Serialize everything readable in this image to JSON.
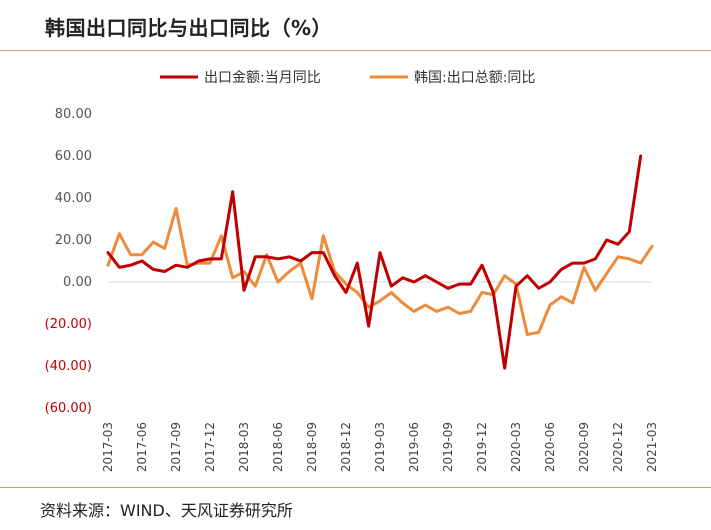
{
  "header": {
    "title": "韩国出口同比与出口同比（%）"
  },
  "footer": {
    "source": "资料来源：WIND、天风证券研究所"
  },
  "colors": {
    "series_red": "#c00000",
    "series_orange": "#ed8b3a",
    "negative_tick": "#c00000",
    "rule": "#d79b5a"
  },
  "chart_data": {
    "type": "line",
    "title": "韩国出口同比与出口同比（%）",
    "xlabel": "",
    "ylabel": "",
    "ylim": [
      -60,
      80
    ],
    "yticks": [
      80,
      60,
      40,
      20,
      0,
      -20,
      -40,
      -60
    ],
    "ytick_labels": [
      "80.00",
      "60.00",
      "40.00",
      "20.00",
      "0.00",
      "(20.00)",
      "(40.00)",
      "(60.00)"
    ],
    "x_tick_labels": [
      "2017-03",
      "2017-06",
      "2017-09",
      "2017-12",
      "2018-03",
      "2018-06",
      "2018-09",
      "2018-12",
      "2019-03",
      "2019-06",
      "2019-09",
      "2019-12",
      "2020-03",
      "2020-06",
      "2020-09",
      "2020-12",
      "2021-03"
    ],
    "x": [
      "2017-03",
      "2017-04",
      "2017-05",
      "2017-06",
      "2017-07",
      "2017-08",
      "2017-09",
      "2017-10",
      "2017-11",
      "2017-12",
      "2018-01",
      "2018-02",
      "2018-03",
      "2018-04",
      "2018-05",
      "2018-06",
      "2018-07",
      "2018-08",
      "2018-09",
      "2018-10",
      "2018-11",
      "2018-12",
      "2019-01",
      "2019-02",
      "2019-03",
      "2019-04",
      "2019-05",
      "2019-06",
      "2019-07",
      "2019-08",
      "2019-09",
      "2019-10",
      "2019-11",
      "2019-12",
      "2020-01",
      "2020-02",
      "2020-03",
      "2020-04",
      "2020-05",
      "2020-06",
      "2020-07",
      "2020-08",
      "2020-09",
      "2020-10",
      "2020-11",
      "2020-12",
      "2021-01",
      "2021-02",
      "2021-03"
    ],
    "legend_position": "top",
    "grid": false,
    "series": [
      {
        "name": "出口金额:当月同比",
        "color": "#c00000",
        "values": [
          14,
          7,
          8,
          10,
          6,
          5,
          8,
          7,
          10,
          11,
          11,
          43,
          -4,
          12,
          12,
          11,
          12,
          10,
          14,
          14,
          3,
          -5,
          9,
          -21,
          14,
          -2,
          2,
          0,
          3,
          0,
          -3,
          -1,
          -1,
          8,
          -5,
          -41,
          -2,
          3,
          -3,
          0,
          6,
          9,
          9,
          11,
          20,
          18,
          24,
          60,
          null
        ]
      },
      {
        "name": "韩国:出口总额:同比",
        "color": "#ed8b3a",
        "values": [
          8,
          23,
          13,
          13,
          19,
          16,
          35,
          8,
          9,
          9,
          22,
          2,
          5,
          -2,
          13,
          0,
          5,
          9,
          -8,
          22,
          5,
          -1,
          -5,
          -12,
          -9,
          -5,
          -10,
          -14,
          -11,
          -14,
          -12,
          -15,
          -14,
          -5,
          -6,
          3,
          -1,
          -25,
          -24,
          -11,
          -7,
          -10,
          7,
          -4,
          4,
          12,
          11,
          9,
          17
        ]
      }
    ]
  }
}
